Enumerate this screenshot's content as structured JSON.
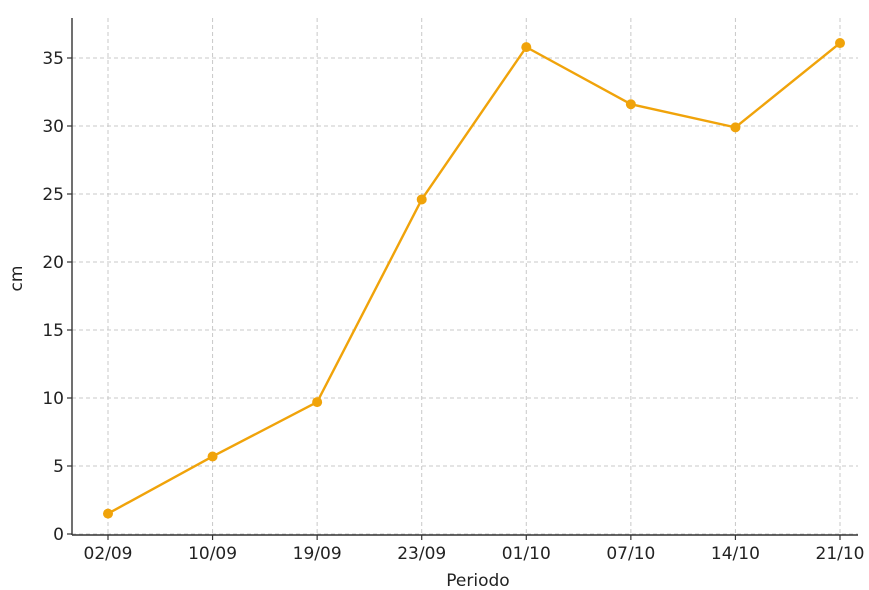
{
  "chart_data": {
    "type": "line",
    "title": "",
    "xlabel": "Periodo",
    "ylabel": "cm",
    "categories": [
      "02/09",
      "10/09",
      "19/09",
      "23/09",
      "01/10",
      "07/10",
      "14/10",
      "21/10"
    ],
    "series": [
      {
        "values": [
          1.5,
          5.7,
          9.7,
          24.6,
          35.8,
          31.6,
          29.9,
          36.1
        ],
        "color": "#f0a30a"
      }
    ],
    "yticks": [
      0,
      5,
      10,
      15,
      20,
      25,
      30,
      35
    ],
    "ylim": [
      0,
      37.5
    ],
    "grid": true,
    "legend": "none"
  }
}
